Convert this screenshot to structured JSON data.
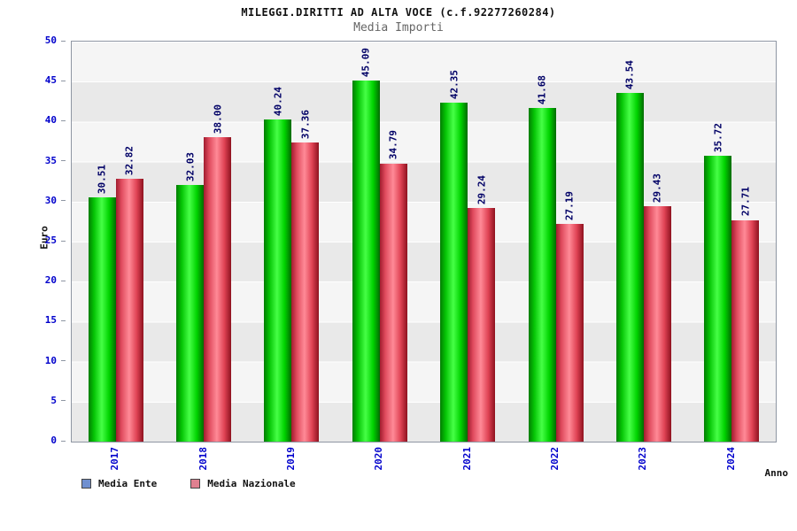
{
  "header": {
    "title": "MILEGGI.DIRITTI AD ALTA VOCE (c.f.92277260284)",
    "subtitle": "Media Importi"
  },
  "chart_data": {
    "type": "bar",
    "categories": [
      "2017",
      "2018",
      "2019",
      "2020",
      "2021",
      "2022",
      "2023",
      "2024"
    ],
    "series": [
      {
        "name": "Media Ente",
        "color": "#00cc00",
        "values": [
          30.51,
          32.03,
          40.24,
          45.09,
          42.35,
          41.68,
          43.54,
          35.72
        ]
      },
      {
        "name": "Media Nazionale",
        "color": "#e04355",
        "values": [
          32.82,
          38.0,
          37.36,
          34.79,
          29.24,
          27.19,
          29.43,
          27.71
        ]
      }
    ],
    "title": "MILEGGI.DIRITTI AD ALTA VOCE (c.f.92277260284)",
    "subtitle": "Media Importi",
    "xlabel": "Anno",
    "ylabel": "Euro",
    "ylim": [
      0,
      50
    ],
    "ytick_step": 5,
    "grid": true,
    "value_label_decimals": 2,
    "legend_position": "bottom-left"
  },
  "legend": {
    "items": [
      {
        "label": "Media Ente",
        "swatch_color": "#7090d0"
      },
      {
        "label": "Media Nazionale",
        "swatch_color": "#e08090"
      }
    ]
  },
  "colors": {
    "tick_label": "#0000cc",
    "value_label": "#000066",
    "band_dark": "#e9e9e9",
    "band_light": "#f5f5f5",
    "gridline": "#ffffff"
  }
}
